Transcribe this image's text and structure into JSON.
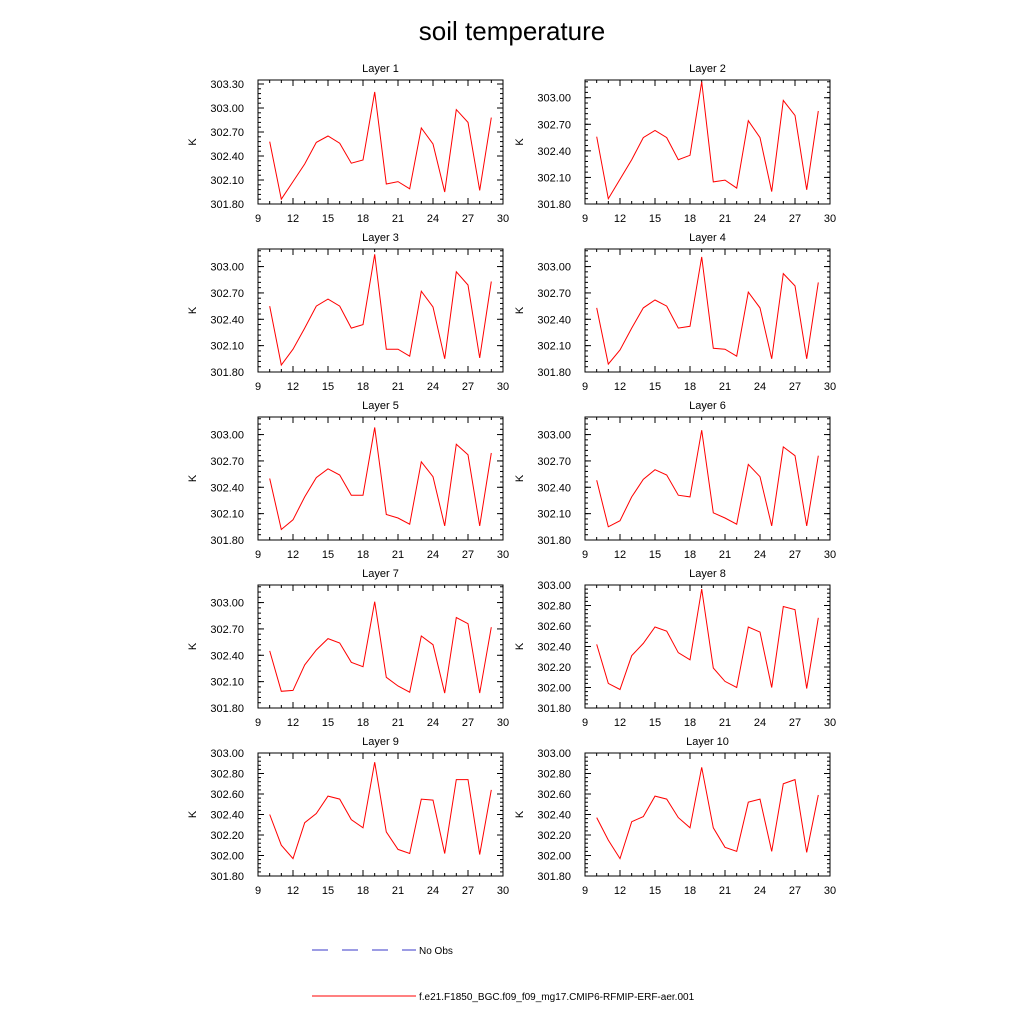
{
  "title": "soil temperature",
  "colors": {
    "model_line": "#ff0000",
    "obs_line": "#3a3ac8",
    "axis": "#000000"
  },
  "legend": {
    "obs_label": "No Obs",
    "model_label": "f.e21.F1850_BGC.f09_f09_mg17.CMIP6-RFMIP-ERF-aer.001"
  },
  "chart_data": [
    {
      "type": "line",
      "title": "Layer 1",
      "xlabel": "",
      "ylabel": "K",
      "x": [
        10,
        11,
        12,
        13,
        14,
        15,
        16,
        17,
        18,
        19,
        20,
        21,
        22,
        23,
        24,
        25,
        26,
        27,
        28,
        29
      ],
      "series": [
        {
          "values": [
            302.58,
            301.86,
            302.08,
            302.3,
            302.57,
            302.65,
            302.56,
            302.31,
            302.35,
            303.2,
            302.05,
            302.08,
            301.99,
            302.75,
            302.55,
            301.95,
            302.98,
            302.82,
            301.97,
            302.88
          ]
        }
      ],
      "xlim": [
        9,
        30
      ],
      "ylim": [
        301.8,
        303.35
      ],
      "xticks": [
        "9",
        "12",
        "15",
        "18",
        "21",
        "24",
        "27",
        "30"
      ],
      "yticks": [
        "301.80",
        "302.10",
        "302.40",
        "302.70",
        "303.00",
        "303.30"
      ]
    },
    {
      "type": "line",
      "title": "Layer 2",
      "xlabel": "",
      "ylabel": "K",
      "x": [
        10,
        11,
        12,
        13,
        14,
        15,
        16,
        17,
        18,
        19,
        20,
        21,
        22,
        23,
        24,
        25,
        26,
        27,
        28,
        29
      ],
      "series": [
        {
          "values": [
            302.56,
            301.86,
            302.08,
            302.3,
            302.55,
            302.63,
            302.55,
            302.3,
            302.35,
            303.18,
            302.05,
            302.07,
            301.98,
            302.74,
            302.55,
            301.94,
            302.97,
            302.8,
            301.96,
            302.85
          ]
        }
      ],
      "xlim": [
        9,
        30
      ],
      "ylim": [
        301.8,
        303.2
      ],
      "xticks": [
        "9",
        "12",
        "15",
        "18",
        "21",
        "24",
        "27",
        "30"
      ],
      "yticks": [
        "301.80",
        "302.10",
        "302.40",
        "302.70",
        "303.00"
      ]
    },
    {
      "type": "line",
      "title": "Layer 3",
      "xlabel": "",
      "ylabel": "K",
      "x": [
        10,
        11,
        12,
        13,
        14,
        15,
        16,
        17,
        18,
        19,
        20,
        21,
        22,
        23,
        24,
        25,
        26,
        27,
        28,
        29
      ],
      "series": [
        {
          "values": [
            302.55,
            301.88,
            302.06,
            302.3,
            302.55,
            302.63,
            302.55,
            302.3,
            302.34,
            303.14,
            302.06,
            302.06,
            301.98,
            302.72,
            302.54,
            301.95,
            302.94,
            302.79,
            301.96,
            302.83
          ]
        }
      ],
      "xlim": [
        9,
        30
      ],
      "ylim": [
        301.8,
        303.2
      ],
      "xticks": [
        "9",
        "12",
        "15",
        "18",
        "21",
        "24",
        "27",
        "30"
      ],
      "yticks": [
        "301.80",
        "302.10",
        "302.40",
        "302.70",
        "303.00"
      ]
    },
    {
      "type": "line",
      "title": "Layer 4",
      "xlabel": "",
      "ylabel": "K",
      "x": [
        10,
        11,
        12,
        13,
        14,
        15,
        16,
        17,
        18,
        19,
        20,
        21,
        22,
        23,
        24,
        25,
        26,
        27,
        28,
        29
      ],
      "series": [
        {
          "values": [
            302.53,
            301.89,
            302.05,
            302.3,
            302.53,
            302.62,
            302.55,
            302.3,
            302.32,
            303.11,
            302.07,
            302.06,
            301.98,
            302.71,
            302.53,
            301.95,
            302.92,
            302.78,
            301.95,
            302.82
          ]
        }
      ],
      "xlim": [
        9,
        30
      ],
      "ylim": [
        301.8,
        303.2
      ],
      "xticks": [
        "9",
        "12",
        "15",
        "18",
        "21",
        "24",
        "27",
        "30"
      ],
      "yticks": [
        "301.80",
        "302.10",
        "302.40",
        "302.70",
        "303.00"
      ]
    },
    {
      "type": "line",
      "title": "Layer 5",
      "xlabel": "",
      "ylabel": "K",
      "x": [
        10,
        11,
        12,
        13,
        14,
        15,
        16,
        17,
        18,
        19,
        20,
        21,
        22,
        23,
        24,
        25,
        26,
        27,
        28,
        29
      ],
      "series": [
        {
          "values": [
            302.5,
            301.92,
            302.03,
            302.29,
            302.51,
            302.61,
            302.54,
            302.31,
            302.31,
            303.08,
            302.09,
            302.05,
            301.98,
            302.69,
            302.52,
            301.96,
            302.89,
            302.77,
            301.96,
            302.79
          ]
        }
      ],
      "xlim": [
        9,
        30
      ],
      "ylim": [
        301.8,
        303.2
      ],
      "xticks": [
        "9",
        "12",
        "15",
        "18",
        "21",
        "24",
        "27",
        "30"
      ],
      "yticks": [
        "301.80",
        "302.10",
        "302.40",
        "302.70",
        "303.00"
      ]
    },
    {
      "type": "line",
      "title": "Layer 6",
      "xlabel": "",
      "ylabel": "K",
      "x": [
        10,
        11,
        12,
        13,
        14,
        15,
        16,
        17,
        18,
        19,
        20,
        21,
        22,
        23,
        24,
        25,
        26,
        27,
        28,
        29
      ],
      "series": [
        {
          "values": [
            302.48,
            301.95,
            302.02,
            302.29,
            302.49,
            302.6,
            302.54,
            302.31,
            302.29,
            303.05,
            302.11,
            302.05,
            301.98,
            302.66,
            302.52,
            301.96,
            302.86,
            302.76,
            301.96,
            302.76
          ]
        }
      ],
      "xlim": [
        9,
        30
      ],
      "ylim": [
        301.8,
        303.2
      ],
      "xticks": [
        "9",
        "12",
        "15",
        "18",
        "21",
        "24",
        "27",
        "30"
      ],
      "yticks": [
        "301.80",
        "302.10",
        "302.40",
        "302.70",
        "303.00"
      ]
    },
    {
      "type": "line",
      "title": "Layer 7",
      "xlabel": "",
      "ylabel": "K",
      "x": [
        10,
        11,
        12,
        13,
        14,
        15,
        16,
        17,
        18,
        19,
        20,
        21,
        22,
        23,
        24,
        25,
        26,
        27,
        28,
        29
      ],
      "series": [
        {
          "values": [
            302.45,
            301.99,
            302.0,
            302.29,
            302.46,
            302.59,
            302.54,
            302.32,
            302.27,
            303.01,
            302.15,
            302.05,
            301.98,
            302.62,
            302.52,
            301.97,
            302.83,
            302.76,
            301.97,
            302.72
          ]
        }
      ],
      "xlim": [
        9,
        30
      ],
      "ylim": [
        301.8,
        303.2
      ],
      "xticks": [
        "9",
        "12",
        "15",
        "18",
        "21",
        "24",
        "27",
        "30"
      ],
      "yticks": [
        "301.80",
        "302.10",
        "302.40",
        "302.70",
        "303.00"
      ]
    },
    {
      "type": "line",
      "title": "Layer 8",
      "xlabel": "",
      "ylabel": "K",
      "x": [
        10,
        11,
        12,
        13,
        14,
        15,
        16,
        17,
        18,
        19,
        20,
        21,
        22,
        23,
        24,
        25,
        26,
        27,
        28,
        29
      ],
      "series": [
        {
          "values": [
            302.42,
            302.04,
            301.98,
            302.31,
            302.43,
            302.59,
            302.55,
            302.34,
            302.27,
            302.96,
            302.19,
            302.06,
            302.0,
            302.59,
            302.54,
            302.0,
            302.79,
            302.76,
            301.99,
            302.68
          ]
        }
      ],
      "xlim": [
        9,
        30
      ],
      "ylim": [
        301.8,
        303.0
      ],
      "xticks": [
        "9",
        "12",
        "15",
        "18",
        "21",
        "24",
        "27",
        "30"
      ],
      "yticks": [
        "301.80",
        "302.00",
        "302.20",
        "302.40",
        "302.60",
        "302.80",
        "303.00"
      ]
    },
    {
      "type": "line",
      "title": "Layer 9",
      "xlabel": "",
      "ylabel": "K",
      "x": [
        10,
        11,
        12,
        13,
        14,
        15,
        16,
        17,
        18,
        19,
        20,
        21,
        22,
        23,
        24,
        25,
        26,
        27,
        28,
        29
      ],
      "series": [
        {
          "values": [
            302.4,
            302.1,
            301.97,
            302.32,
            302.41,
            302.58,
            302.55,
            302.35,
            302.27,
            302.91,
            302.23,
            302.06,
            302.02,
            302.55,
            302.54,
            302.02,
            302.74,
            302.74,
            302.01,
            302.64
          ]
        }
      ],
      "xlim": [
        9,
        30
      ],
      "ylim": [
        301.8,
        303.0
      ],
      "xticks": [
        "9",
        "12",
        "15",
        "18",
        "21",
        "24",
        "27",
        "30"
      ],
      "yticks": [
        "301.80",
        "302.00",
        "302.20",
        "302.40",
        "302.60",
        "302.80",
        "303.00"
      ]
    },
    {
      "type": "line",
      "title": "Layer 10",
      "xlabel": "",
      "ylabel": "K",
      "x": [
        10,
        11,
        12,
        13,
        14,
        15,
        16,
        17,
        18,
        19,
        20,
        21,
        22,
        23,
        24,
        25,
        26,
        27,
        28,
        29
      ],
      "series": [
        {
          "values": [
            302.37,
            302.15,
            301.97,
            302.33,
            302.38,
            302.58,
            302.55,
            302.37,
            302.27,
            302.86,
            302.27,
            302.08,
            302.04,
            302.52,
            302.55,
            302.04,
            302.7,
            302.74,
            302.03,
            302.59
          ]
        }
      ],
      "xlim": [
        9,
        30
      ],
      "ylim": [
        301.8,
        303.0
      ],
      "xticks": [
        "9",
        "12",
        "15",
        "18",
        "21",
        "24",
        "27",
        "30"
      ],
      "yticks": [
        "301.80",
        "302.00",
        "302.20",
        "302.40",
        "302.60",
        "302.80",
        "303.00"
      ]
    }
  ]
}
